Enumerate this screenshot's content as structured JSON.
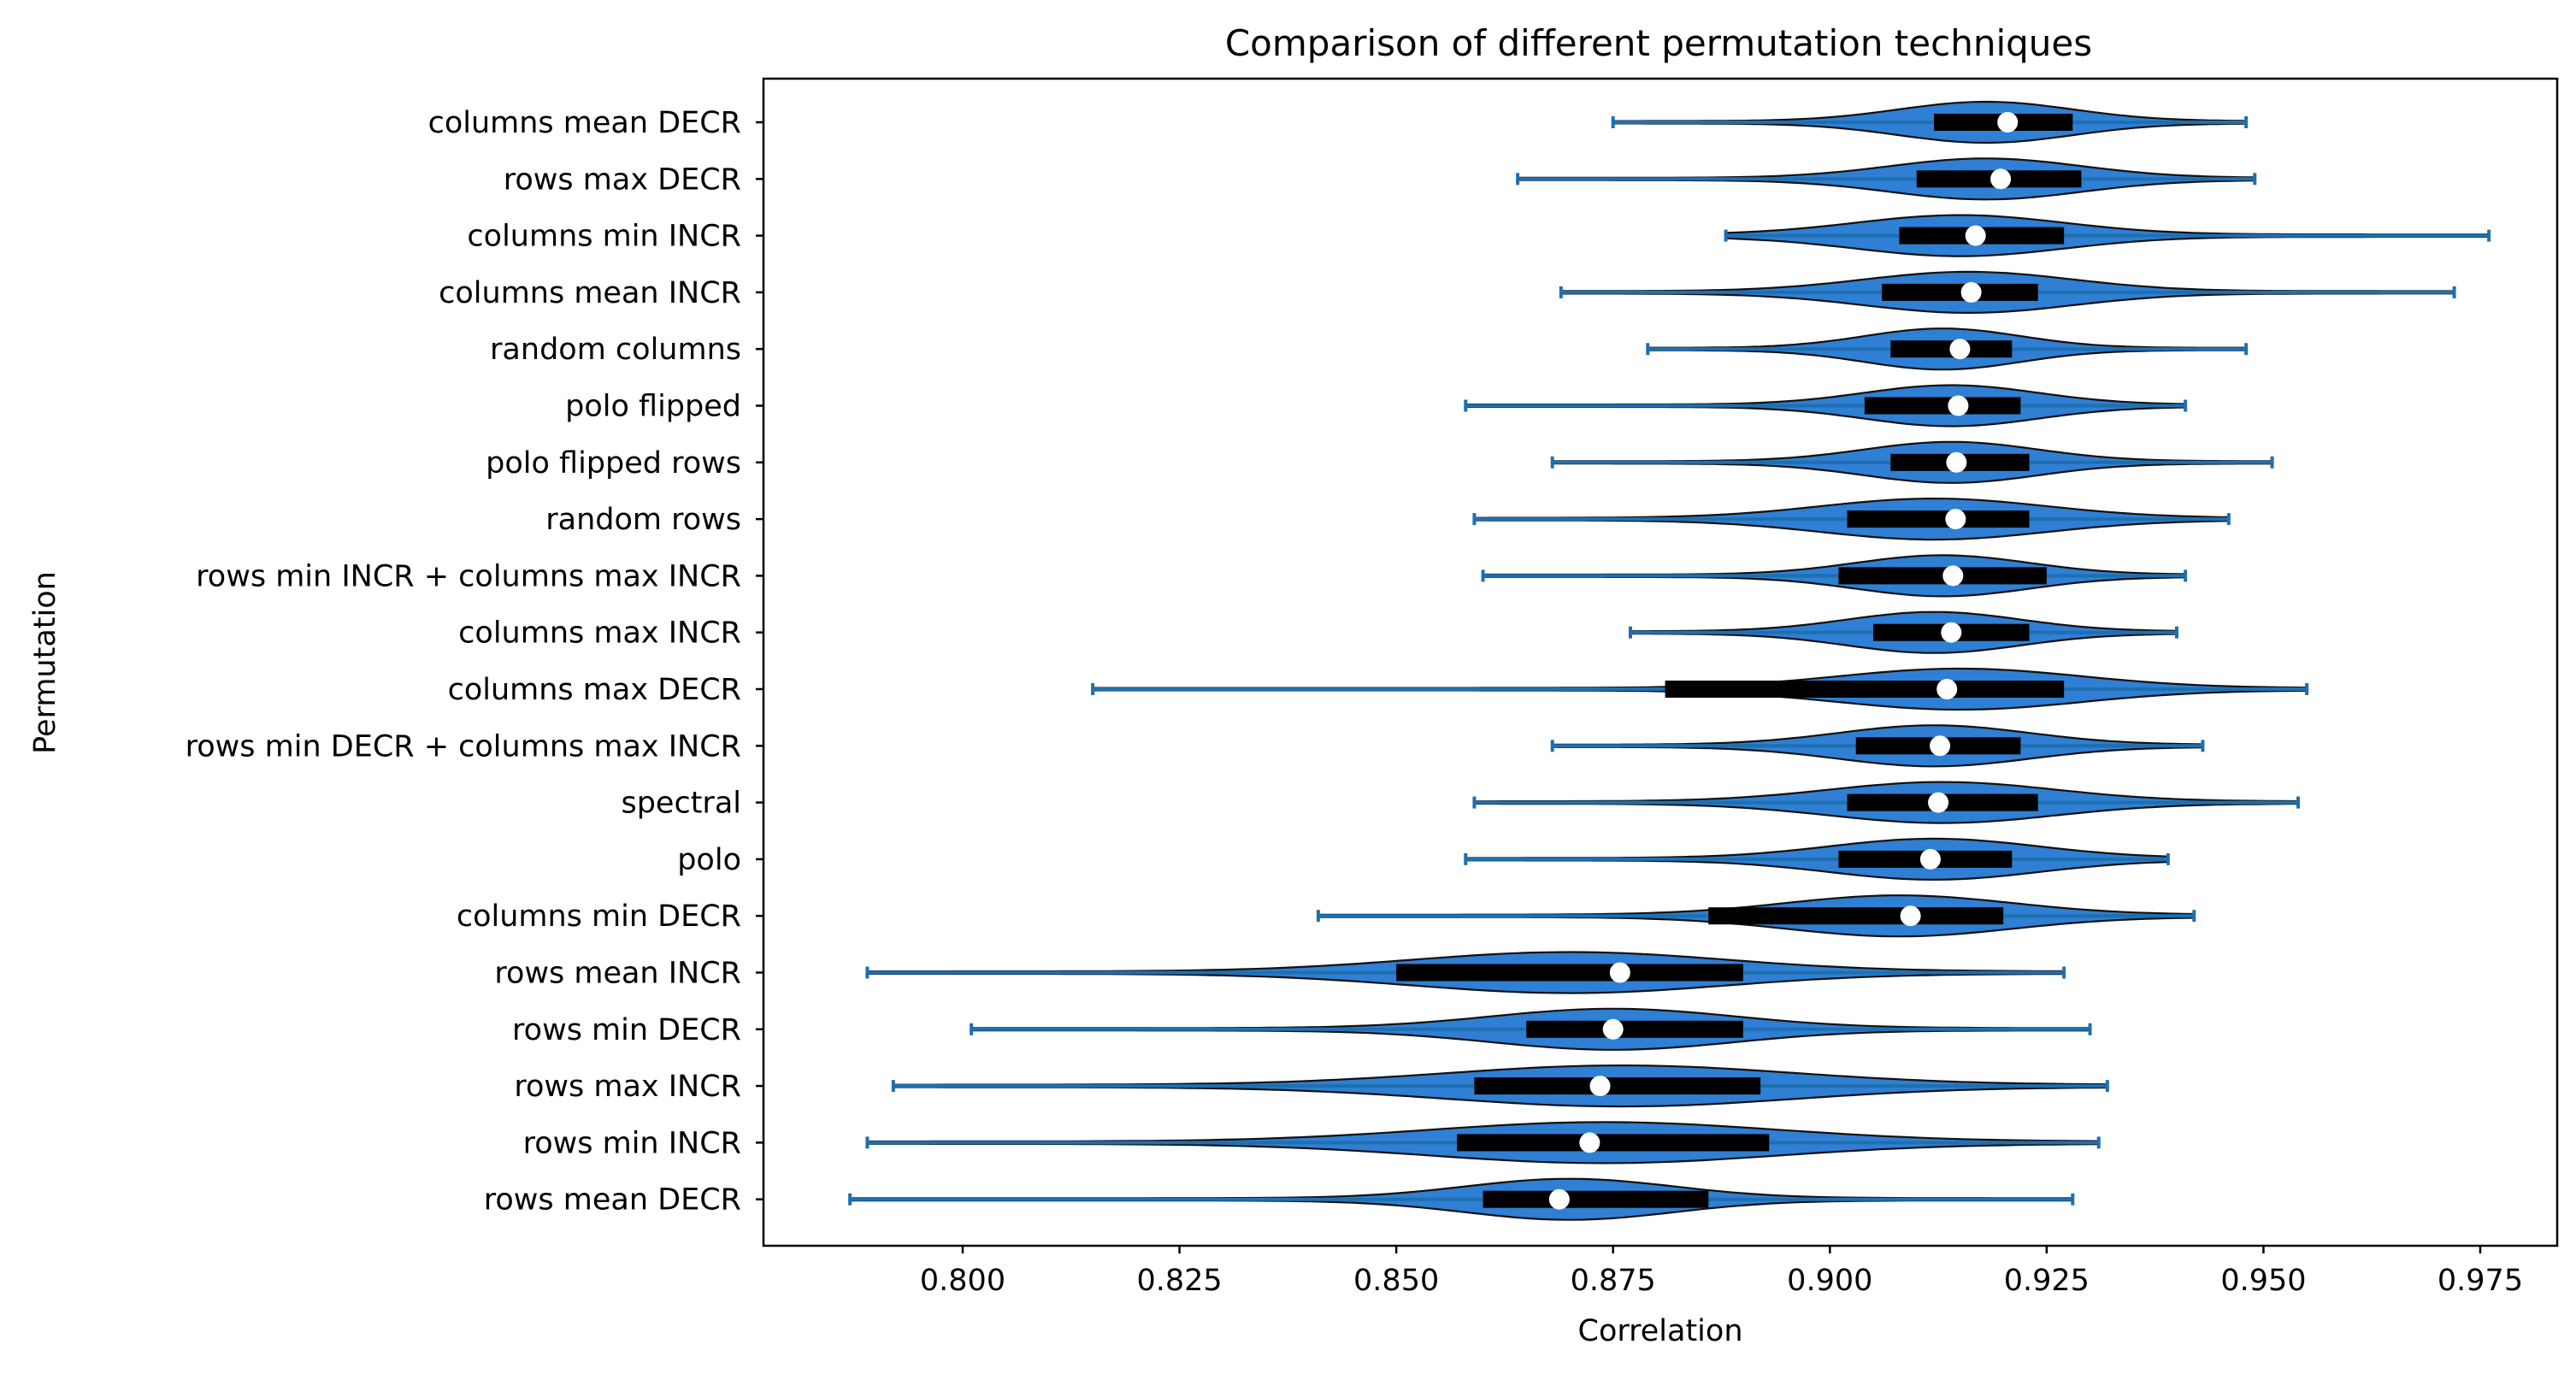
{
  "chart_data": {
    "type": "violin",
    "orientation": "horizontal",
    "title": "Comparison of different permutation techniques",
    "xlabel": "Correlation",
    "ylabel": "Permutation",
    "xlim": [
      0.78,
      0.985
    ],
    "xticks": [
      "0.800",
      "0.825",
      "0.850",
      "0.875",
      "0.900",
      "0.925",
      "0.950",
      "0.975"
    ],
    "xtick_values": [
      0.8,
      0.825,
      0.85,
      0.875,
      0.9,
      0.925,
      0.95,
      0.975
    ],
    "grid": false,
    "colors": {
      "fill": "#2f7fd4",
      "stroke": "#111111",
      "whisker": "#1f6fb0",
      "box": "#000000",
      "median": "#ffffff"
    },
    "series": [
      {
        "label": "columns mean DECR",
        "min": 0.875,
        "q1": 0.912,
        "median": 0.9205,
        "q3": 0.928,
        "max": 0.948,
        "mode": 0.918,
        "spread": 0.01
      },
      {
        "label": "rows max DECR",
        "min": 0.864,
        "q1": 0.91,
        "median": 0.9197,
        "q3": 0.929,
        "max": 0.949,
        "mode": 0.918,
        "spread": 0.011
      },
      {
        "label": "columns min INCR",
        "min": 0.888,
        "q1": 0.908,
        "median": 0.9168,
        "q3": 0.927,
        "max": 0.976,
        "mode": 0.915,
        "spread": 0.012
      },
      {
        "label": "columns mean INCR",
        "min": 0.869,
        "q1": 0.906,
        "median": 0.9163,
        "q3": 0.924,
        "max": 0.972,
        "mode": 0.916,
        "spread": 0.012
      },
      {
        "label": "random columns",
        "min": 0.879,
        "q1": 0.907,
        "median": 0.915,
        "q3": 0.921,
        "max": 0.948,
        "mode": 0.913,
        "spread": 0.009
      },
      {
        "label": "polo flipped",
        "min": 0.858,
        "q1": 0.904,
        "median": 0.9148,
        "q3": 0.922,
        "max": 0.941,
        "mode": 0.914,
        "spread": 0.01
      },
      {
        "label": "polo flipped rows",
        "min": 0.868,
        "q1": 0.907,
        "median": 0.9146,
        "q3": 0.923,
        "max": 0.951,
        "mode": 0.914,
        "spread": 0.01
      },
      {
        "label": "random rows",
        "min": 0.859,
        "q1": 0.902,
        "median": 0.9145,
        "q3": 0.923,
        "max": 0.946,
        "mode": 0.912,
        "spread": 0.013
      },
      {
        "label": "rows min INCR + columns max INCR",
        "min": 0.86,
        "q1": 0.901,
        "median": 0.9142,
        "q3": 0.925,
        "max": 0.941,
        "mode": 0.913,
        "spread": 0.01
      },
      {
        "label": "columns max INCR",
        "min": 0.877,
        "q1": 0.905,
        "median": 0.914,
        "q3": 0.923,
        "max": 0.94,
        "mode": 0.912,
        "spread": 0.01
      },
      {
        "label": "columns max DECR",
        "min": 0.815,
        "q1": 0.881,
        "median": 0.9135,
        "q3": 0.927,
        "max": 0.955,
        "mode": 0.915,
        "spread": 0.014
      },
      {
        "label": "rows min DECR + columns max INCR",
        "min": 0.868,
        "q1": 0.903,
        "median": 0.9127,
        "q3": 0.922,
        "max": 0.943,
        "mode": 0.912,
        "spread": 0.011
      },
      {
        "label": "spectral",
        "min": 0.859,
        "q1": 0.902,
        "median": 0.9125,
        "q3": 0.924,
        "max": 0.954,
        "mode": 0.913,
        "spread": 0.013
      },
      {
        "label": "polo",
        "min": 0.858,
        "q1": 0.901,
        "median": 0.9116,
        "q3": 0.921,
        "max": 0.939,
        "mode": 0.912,
        "spread": 0.012
      },
      {
        "label": "columns min DECR",
        "min": 0.841,
        "q1": 0.886,
        "median": 0.9093,
        "q3": 0.92,
        "max": 0.942,
        "mode": 0.908,
        "spread": 0.013
      },
      {
        "label": "rows mean INCR",
        "min": 0.789,
        "q1": 0.85,
        "median": 0.8758,
        "q3": 0.89,
        "max": 0.927,
        "mode": 0.87,
        "spread": 0.018
      },
      {
        "label": "rows min DECR",
        "min": 0.801,
        "q1": 0.865,
        "median": 0.875,
        "q3": 0.89,
        "max": 0.93,
        "mode": 0.875,
        "spread": 0.014
      },
      {
        "label": "rows max INCR",
        "min": 0.792,
        "q1": 0.859,
        "median": 0.8735,
        "q3": 0.892,
        "max": 0.932,
        "mode": 0.876,
        "spread": 0.02
      },
      {
        "label": "rows min INCR",
        "min": 0.789,
        "q1": 0.857,
        "median": 0.8723,
        "q3": 0.893,
        "max": 0.931,
        "mode": 0.874,
        "spread": 0.02
      },
      {
        "label": "rows mean DECR",
        "min": 0.787,
        "q1": 0.86,
        "median": 0.8688,
        "q3": 0.886,
        "max": 0.928,
        "mode": 0.87,
        "spread": 0.012
      }
    ]
  }
}
